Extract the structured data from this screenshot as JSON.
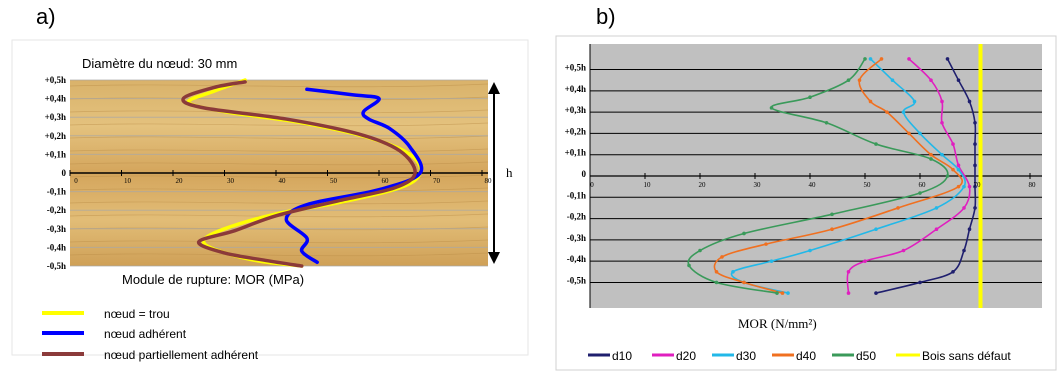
{
  "panel_a_label": "a)",
  "panel_b_label": "b)",
  "chart_data": [
    {
      "type": "line",
      "title": "Diamètre du nœud: 30 mm",
      "xlabel": "Module de rupture: MOR (MPa)",
      "ylabel": "h",
      "xlim": [
        0,
        80
      ],
      "x_ticks": [
        "0",
        "10",
        "20",
        "30",
        "40",
        "50",
        "60",
        "70",
        "80"
      ],
      "y_ticks": [
        "+0,5h",
        "+0,4h",
        "+0,3h",
        "+0,2h",
        "+0,1h",
        "0",
        "-0,1h",
        "-0,2h",
        "-0,3h",
        "-0,4h",
        "-0,5h"
      ],
      "legend_position": "bottom-left",
      "series": [
        {
          "name": "nœud = trou",
          "color": "#ffff00",
          "points": [
            [
              34,
              0.5
            ],
            [
              28,
              0.44
            ],
            [
              23,
              0.38
            ],
            [
              30,
              0.33
            ],
            [
              45,
              0.27
            ],
            [
              58,
              0.19
            ],
            [
              66,
              0.1
            ],
            [
              68,
              0
            ],
            [
              64,
              -0.08
            ],
            [
              52,
              -0.16
            ],
            [
              40,
              -0.22
            ],
            [
              30,
              -0.3
            ],
            [
              26,
              -0.36
            ],
            [
              28,
              -0.41
            ],
            [
              36,
              -0.47
            ],
            [
              45,
              -0.5
            ]
          ]
        },
        {
          "name": "nœud adhérent",
          "color": "#0000ff",
          "points": [
            [
              46,
              0.45
            ],
            [
              55,
              0.42
            ],
            [
              60,
              0.4
            ],
            [
              57,
              0.33
            ],
            [
              58,
              0.29
            ],
            [
              62,
              0.24
            ],
            [
              66,
              0.14
            ],
            [
              68,
              0
            ],
            [
              60,
              -0.09
            ],
            [
              46,
              -0.17
            ],
            [
              42,
              -0.25
            ],
            [
              46,
              -0.35
            ],
            [
              45,
              -0.42
            ],
            [
              48,
              -0.48
            ]
          ]
        },
        {
          "name": "nœud partiellement adhérent",
          "color": "#8b3a3a",
          "points": [
            [
              34,
              0.49
            ],
            [
              28,
              0.46
            ],
            [
              22,
              0.4
            ],
            [
              26,
              0.35
            ],
            [
              42,
              0.29
            ],
            [
              56,
              0.21
            ],
            [
              64,
              0.12
            ],
            [
              67,
              0
            ],
            [
              63,
              -0.08
            ],
            [
              52,
              -0.15
            ],
            [
              40,
              -0.23
            ],
            [
              32,
              -0.31
            ],
            [
              25,
              -0.37
            ],
            [
              30,
              -0.43
            ],
            [
              38,
              -0.47
            ],
            [
              45,
              -0.5
            ]
          ]
        }
      ]
    },
    {
      "type": "line",
      "xlabel": "MOR (N/mm²)",
      "xlim": [
        0,
        80
      ],
      "x_ticks": [
        "0",
        "10",
        "20",
        "30",
        "40",
        "50",
        "60",
        "70",
        "80"
      ],
      "y_ticks": [
        "+0,5h",
        "+0,4h",
        "+0,3h",
        "+0,2h",
        "+0,1h",
        "0",
        "-0,1h",
        "-0,2h",
        "-0,3h",
        "-0,4h",
        "-0,5h"
      ],
      "legend_position": "bottom",
      "series": [
        {
          "name": "d10",
          "color": "#1f1f6e",
          "points": [
            [
              65,
              0.55
            ],
            [
              67,
              0.45
            ],
            [
              69,
              0.35
            ],
            [
              70,
              0.25
            ],
            [
              70,
              0.15
            ],
            [
              70,
              0.05
            ],
            [
              70,
              -0.05
            ],
            [
              70,
              -0.15
            ],
            [
              69,
              -0.25
            ],
            [
              68,
              -0.35
            ],
            [
              66,
              -0.45
            ],
            [
              60,
              -0.5
            ],
            [
              52,
              -0.55
            ]
          ]
        },
        {
          "name": "d20",
          "color": "#e01fbf",
          "points": [
            [
              58,
              0.55
            ],
            [
              62,
              0.45
            ],
            [
              64,
              0.35
            ],
            [
              64,
              0.25
            ],
            [
              66,
              0.15
            ],
            [
              67,
              0.05
            ],
            [
              69,
              -0.05
            ],
            [
              68,
              -0.15
            ],
            [
              63,
              -0.25
            ],
            [
              57,
              -0.35
            ],
            [
              50,
              -0.4
            ],
            [
              47,
              -0.45
            ],
            [
              47,
              -0.55
            ]
          ]
        },
        {
          "name": "d30",
          "color": "#22b8e8",
          "points": [
            [
              51,
              0.55
            ],
            [
              55,
              0.45
            ],
            [
              59,
              0.35
            ],
            [
              57,
              0.3
            ],
            [
              60,
              0.2
            ],
            [
              64,
              0.1
            ],
            [
              67,
              0.03
            ],
            [
              68,
              -0.05
            ],
            [
              63,
              -0.15
            ],
            [
              52,
              -0.25
            ],
            [
              40,
              -0.35
            ],
            [
              33,
              -0.4
            ],
            [
              26,
              -0.45
            ],
            [
              28,
              -0.5
            ],
            [
              36,
              -0.55
            ]
          ]
        },
        {
          "name": "d40",
          "color": "#f07020",
          "points": [
            [
              53,
              0.55
            ],
            [
              49,
              0.45
            ],
            [
              51,
              0.35
            ],
            [
              54,
              0.3
            ],
            [
              58,
              0.2
            ],
            [
              62,
              0.1
            ],
            [
              66,
              0.03
            ],
            [
              67,
              -0.05
            ],
            [
              56,
              -0.15
            ],
            [
              44,
              -0.25
            ],
            [
              32,
              -0.32
            ],
            [
              24,
              -0.38
            ],
            [
              23,
              -0.45
            ],
            [
              28,
              -0.5
            ],
            [
              35,
              -0.55
            ]
          ]
        },
        {
          "name": "d50",
          "color": "#3a9a5a",
          "points": [
            [
              50,
              0.55
            ],
            [
              47,
              0.45
            ],
            [
              40,
              0.37
            ],
            [
              33,
              0.32
            ],
            [
              43,
              0.25
            ],
            [
              52,
              0.15
            ],
            [
              62,
              0.08
            ],
            [
              65,
              0
            ],
            [
              60,
              -0.08
            ],
            [
              44,
              -0.18
            ],
            [
              28,
              -0.27
            ],
            [
              20,
              -0.35
            ],
            [
              18,
              -0.42
            ],
            [
              23,
              -0.5
            ],
            [
              34,
              -0.55
            ]
          ]
        },
        {
          "name": "Bois sans défaut",
          "color": "#ffff00",
          "points": [
            [
              71,
              0.62
            ],
            [
              71,
              -0.62
            ]
          ]
        }
      ]
    }
  ]
}
